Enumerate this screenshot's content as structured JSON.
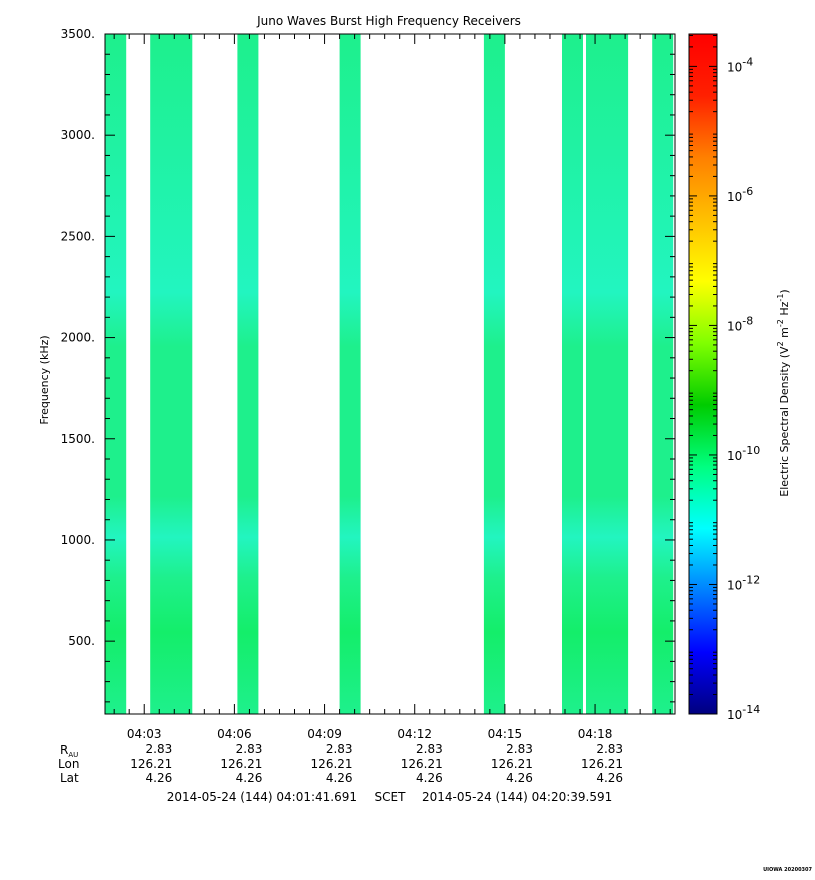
{
  "chart_data": {
    "type": "heatmap",
    "title": "Juno Waves Burst High Frequency Receivers",
    "ylabel": "Frequency (kHz)",
    "ylim": [
      140,
      3500
    ],
    "y_ticks": [
      {
        "value": 500,
        "label": "500."
      },
      {
        "value": 1000,
        "label": "1000."
      },
      {
        "value": 1500,
        "label": "1500."
      },
      {
        "value": 2000,
        "label": "2000."
      },
      {
        "value": 2500,
        "label": "2500."
      },
      {
        "value": 3000,
        "label": "3000."
      },
      {
        "value": 3500,
        "label": "3500."
      }
    ],
    "x_time_range": [
      "04:01:41.691",
      "04:20:39.591"
    ],
    "x_ticks": [
      {
        "time": "04:03",
        "R_AU": "2.83",
        "Lon": "126.21",
        "Lat": "4.26"
      },
      {
        "time": "04:06",
        "R_AU": "2.83",
        "Lon": "126.21",
        "Lat": "4.26"
      },
      {
        "time": "04:09",
        "R_AU": "2.83",
        "Lon": "126.21",
        "Lat": "4.26"
      },
      {
        "time": "04:12",
        "R_AU": "2.83",
        "Lon": "126.21",
        "Lat": "4.26"
      },
      {
        "time": "04:15",
        "R_AU": "2.83",
        "Lon": "126.21",
        "Lat": "4.26"
      },
      {
        "time": "04:18",
        "R_AU": "2.83",
        "Lon": "126.21",
        "Lat": "4.26"
      }
    ],
    "ephemeris_row_labels": {
      "r": "R",
      "r_sub": "AU",
      "lon": "Lon",
      "lat": "Lat"
    },
    "time_range_text": {
      "start": "2014-05-24 (144) 04:01:41.691",
      "frame": "SCET",
      "end": "2014-05-24 (144) 04:20:39.591"
    },
    "bursts": [
      {
        "start": "04:01:42",
        "end": "04:02:24"
      },
      {
        "start": "04:03:12",
        "end": "04:04:36"
      },
      {
        "start": "04:06:06",
        "end": "04:06:48"
      },
      {
        "start": "04:09:30",
        "end": "04:10:12"
      },
      {
        "start": "04:14:18",
        "end": "04:15:00"
      },
      {
        "start": "04:16:54",
        "end": "04:17:36"
      },
      {
        "start": "04:17:42",
        "end": "04:19:06"
      },
      {
        "start": "04:19:54",
        "end": "04:20:36"
      }
    ],
    "colorbar": {
      "label_main": "Electric Spectral Density (V",
      "label_sup1": "2",
      "label_mid": " m",
      "label_sup2": "-2",
      "label_hz": " Hz",
      "label_sup3": "-1",
      "label_end": ")",
      "log_min": -14,
      "log_max": -3.5,
      "ticks": [
        {
          "value": -14,
          "base": "10",
          "exp": "-14"
        },
        {
          "value": -12,
          "base": "10",
          "exp": "-12"
        },
        {
          "value": -10,
          "base": "10",
          "exp": "-10"
        },
        {
          "value": -8,
          "base": "10",
          "exp": "-8"
        },
        {
          "value": -6,
          "base": "10",
          "exp": "-6"
        },
        {
          "value": -4,
          "base": "10",
          "exp": "-4"
        }
      ],
      "colors": [
        "#00007f",
        "#0000ff",
        "#0080ff",
        "#00ffff",
        "#00ff80",
        "#00cc00",
        "#80ff00",
        "#ffff00",
        "#ffc000",
        "#ff8000",
        "#ff2000",
        "#ff0000"
      ]
    },
    "spectrum_level_log": -10,
    "cell_colors": {
      "base": "#1ef08c",
      "band_cyan": "#22f5c0",
      "band_green": "#14ee6a"
    },
    "footer_tag": "UIOWA 20200307"
  }
}
